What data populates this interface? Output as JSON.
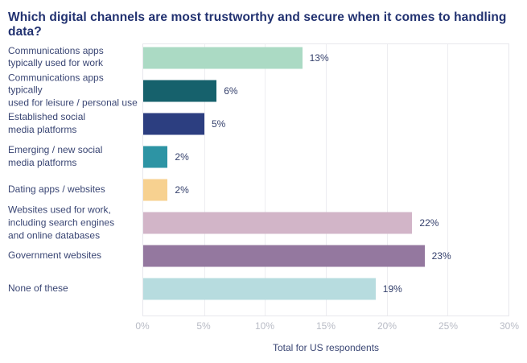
{
  "chart_data": {
    "type": "bar",
    "orientation": "horizontal",
    "title": "Which digital channels are most trustworthy and secure when it comes to handling data?",
    "categories": [
      "Communications apps\ntypically used for work",
      "Communications apps typically\nused for leisure / personal use",
      "Established social\nmedia platforms",
      "Emerging / new social\nmedia platforms",
      "Dating apps / websites",
      "Websites used for work,\nincluding search engines\nand online databases",
      "Government websites",
      "None of these"
    ],
    "values": [
      13,
      6,
      5,
      2,
      2,
      22,
      23,
      19
    ],
    "value_labels": [
      "13%",
      "6%",
      "5%",
      "2%",
      "2%",
      "22%",
      "23%",
      "19%"
    ],
    "bar_colors": [
      "#abdac4",
      "#16616c",
      "#2c3e80",
      "#2d94a4",
      "#f7d190",
      "#d2b5c8",
      "#94789f",
      "#b7dcdf"
    ],
    "xlim": [
      0,
      30
    ],
    "x_ticks": [
      "0%",
      "5%",
      "10%",
      "15%",
      "20%",
      "25%",
      "30%"
    ],
    "grid": "vertical",
    "caption": "Total for US respondents",
    "colors": {
      "title_text": "#213170",
      "label_text": "#3a4674",
      "tick_text": "#b8bbc5",
      "gridline": "#ededf1",
      "plot_border": "#e7e7ec",
      "background": "#ffffff"
    }
  }
}
